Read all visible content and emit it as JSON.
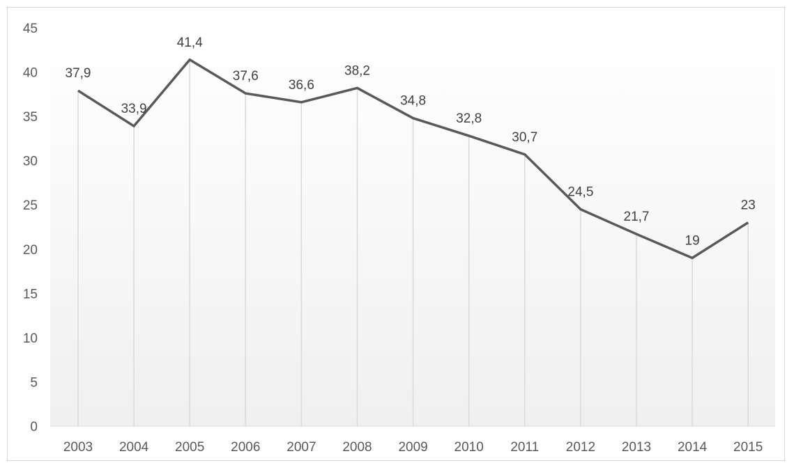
{
  "chart_data": {
    "type": "line",
    "categories": [
      "2003",
      "2004",
      "2005",
      "2006",
      "2007",
      "2008",
      "2009",
      "2010",
      "2011",
      "2012",
      "2013",
      "2014",
      "2015"
    ],
    "values": [
      37.9,
      33.9,
      41.4,
      37.6,
      36.6,
      38.2,
      34.8,
      32.8,
      30.7,
      24.5,
      21.7,
      19,
      23
    ],
    "data_labels": [
      "37,9",
      "33,9",
      "41,4",
      "37,6",
      "36,6",
      "38,2",
      "34,8",
      "32,8",
      "30,7",
      "24,5",
      "21,7",
      "19",
      "23"
    ],
    "ylim": [
      0,
      45
    ],
    "yticks": [
      "0",
      "5",
      "10",
      "15",
      "20",
      "25",
      "30",
      "35",
      "40",
      "45"
    ],
    "grid": "vertical",
    "legend": "none",
    "line_color": "#595959",
    "grid_color": "#d9d9d9",
    "background": "gradient light gray at bottom"
  }
}
